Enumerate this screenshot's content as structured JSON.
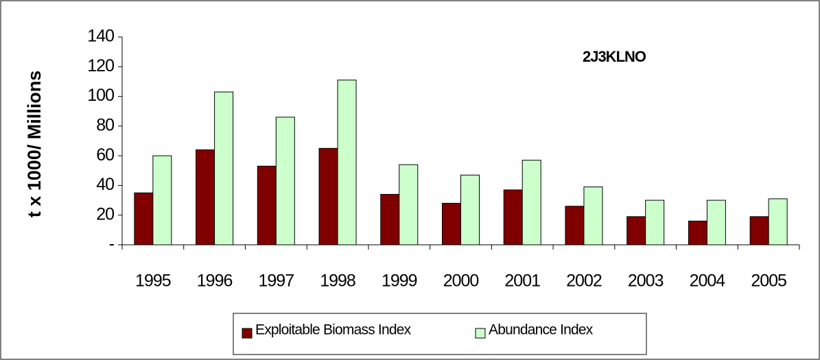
{
  "chart_data": {
    "type": "bar",
    "annotation": "2J3KLNO",
    "y_label": "t x 1000/ Millions",
    "categories": [
      "1995",
      "1996",
      "1997",
      "1998",
      "1999",
      "2000",
      "2001",
      "2002",
      "2003",
      "2004",
      "2005"
    ],
    "series": [
      {
        "name": "Exploitable Biomass Index",
        "color": "#800000",
        "values": [
          35,
          64,
          53,
          65,
          34,
          28,
          37,
          26,
          19,
          16,
          19
        ]
      },
      {
        "name": "Abundance Index",
        "color": "#ccffcc",
        "values": [
          60,
          103,
          86,
          111,
          54,
          47,
          57,
          39,
          30,
          30,
          31
        ]
      }
    ],
    "ylim": [
      0,
      140
    ],
    "yticks": [
      {
        "value": 0,
        "label": "-"
      },
      20,
      40,
      60,
      80,
      100,
      120,
      140
    ],
    "grid": false,
    "legend": "bottom"
  }
}
